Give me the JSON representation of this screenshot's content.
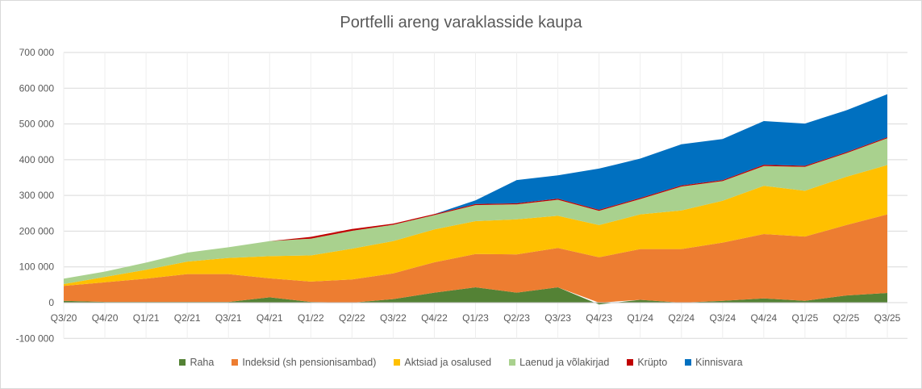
{
  "chart_data": {
    "type": "area",
    "stacked": true,
    "title": "Portfelli areng varaklasside kaupa",
    "xlabel": "",
    "ylabel": "",
    "ylim": [
      -100000,
      700000
    ],
    "yticks": [
      -100000,
      0,
      100000,
      200000,
      300000,
      400000,
      500000,
      600000,
      700000
    ],
    "ytick_labels": [
      "-100 000",
      "0",
      "100 000",
      "200 000",
      "300 000",
      "400 000",
      "500 000",
      "600 000",
      "700 000"
    ],
    "grid": true,
    "legend_position": "bottom",
    "categories": [
      "Q3/20",
      "Q4/20",
      "Q1/21",
      "Q2/21",
      "Q3/21",
      "Q4/21",
      "Q1/22",
      "Q2/22",
      "Q3/22",
      "Q4/22",
      "Q1/23",
      "Q2/23",
      "Q3/23",
      "Q4/23",
      "Q1/24",
      "Q2/24",
      "Q3/24",
      "Q4/24",
      "Q1/25",
      "Q2/25",
      "Q3/25"
    ],
    "series": [
      {
        "name": "Raha",
        "color": "#548235",
        "values": [
          5000,
          2000,
          2000,
          2000,
          2000,
          15000,
          2000,
          0,
          10000,
          28000,
          43000,
          28000,
          43000,
          -5000,
          8000,
          0,
          5000,
          12000,
          5000,
          20000,
          27000
        ]
      },
      {
        "name": "Indeksid (sh pensionisambad)",
        "color": "#ED7D31",
        "values": [
          42000,
          55000,
          65000,
          78000,
          78000,
          53000,
          57000,
          65000,
          72000,
          85000,
          93000,
          107000,
          110000,
          127000,
          142000,
          150000,
          163000,
          180000,
          180000,
          197000,
          220000
        ]
      },
      {
        "name": "Aktsiad ja osalused",
        "color": "#FFC000",
        "values": [
          5000,
          15000,
          25000,
          35000,
          45000,
          62000,
          73000,
          86000,
          90000,
          92000,
          92000,
          98000,
          90000,
          90000,
          97000,
          108000,
          117000,
          135000,
          128000,
          135000,
          138000
        ]
      },
      {
        "name": "Laenud ja võlakirjad",
        "color": "#A9D18E",
        "values": [
          15000,
          15000,
          20000,
          25000,
          30000,
          42000,
          47000,
          50000,
          46000,
          40000,
          45000,
          42000,
          45000,
          40000,
          43000,
          67000,
          55000,
          55000,
          67000,
          66000,
          75000
        ]
      },
      {
        "name": "Krüpto",
        "color": "#C00000",
        "values": [
          0,
          0,
          0,
          0,
          0,
          0,
          5000,
          5000,
          3000,
          3000,
          3000,
          3000,
          3000,
          3000,
          3000,
          3000,
          3000,
          4000,
          3000,
          3000,
          3000
        ]
      },
      {
        "name": "Kinnisvara",
        "color": "#0070C0",
        "values": [
          0,
          0,
          0,
          0,
          0,
          0,
          0,
          0,
          0,
          0,
          10000,
          65000,
          65000,
          115000,
          110000,
          115000,
          115000,
          122000,
          118000,
          117000,
          120000
        ]
      }
    ]
  }
}
